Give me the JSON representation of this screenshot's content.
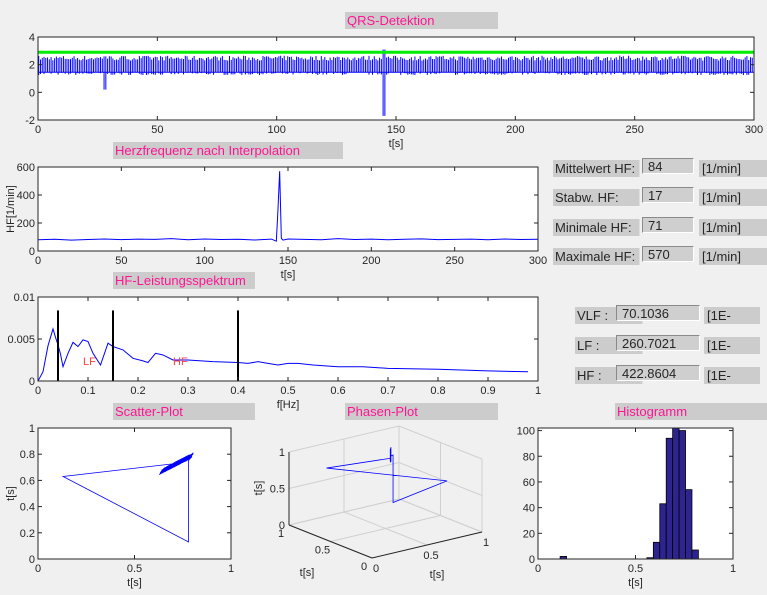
{
  "titles": {
    "qrs": "QRS-Detektion",
    "hr": "Herzfrequenz nach Interpolation",
    "spectrum": "HF-Leistungsspektrum",
    "scatter": "Scatter-Plot",
    "phase": "Phasen-Plot",
    "histogram": "Histogramm"
  },
  "hr_stats": [
    {
      "label": "Mittelwert HF:",
      "value": "84",
      "unit": "[1/min]"
    },
    {
      "label": "Stabw. HF:",
      "value": "17",
      "unit": "[1/min]"
    },
    {
      "label": "Minimale HF:",
      "value": "71",
      "unit": "[1/min]"
    },
    {
      "label": "Maximale HF:",
      "value": "570",
      "unit": "[1/min]"
    }
  ],
  "band_power": [
    {
      "label": "VLF :",
      "value": "70.1036",
      "unit": "[1E-"
    },
    {
      "label": "LF :",
      "value": "260.7021",
      "unit": "[1E-"
    },
    {
      "label": "HF :",
      "value": "422.8604",
      "unit": "[1E-"
    }
  ],
  "colors": {
    "title_text": "#ff1493",
    "signal": "#0000ff",
    "threshold": "#00ee00",
    "band_label": "#ff4040",
    "histogram_bar": "#2e2490"
  },
  "chart_data": [
    {
      "id": "qrs",
      "type": "line",
      "xlabel": "t[s]",
      "ylabel": "",
      "xlim": [
        0,
        300
      ],
      "ylim": [
        -2,
        4
      ],
      "xticks": [
        0,
        50,
        100,
        150,
        200,
        250,
        300
      ],
      "yticks": [
        -2,
        0,
        2,
        4
      ],
      "threshold": 2.9,
      "signal": {
        "baseline": 1.4,
        "peak": 2.5,
        "artifacts": [
          {
            "t": 28,
            "min": 0.2,
            "max": 2.6
          },
          {
            "t": 145,
            "min": -1.7,
            "max": 3.1
          }
        ]
      }
    },
    {
      "id": "hr",
      "type": "line",
      "xlabel": "t[s]",
      "ylabel": "HF[1/min]",
      "xlim": [
        0,
        300
      ],
      "ylim": [
        0,
        600
      ],
      "xticks": [
        0,
        50,
        100,
        150,
        200,
        250,
        300
      ],
      "yticks": [
        0,
        200,
        400,
        600
      ],
      "x": [
        0,
        10,
        20,
        30,
        40,
        50,
        60,
        70,
        80,
        90,
        100,
        110,
        120,
        130,
        140,
        143,
        144,
        145,
        146,
        147,
        150,
        160,
        170,
        180,
        190,
        200,
        210,
        220,
        230,
        240,
        250,
        260,
        270,
        280,
        290,
        300
      ],
      "y": [
        80,
        84,
        78,
        82,
        86,
        81,
        85,
        83,
        88,
        80,
        86,
        82,
        84,
        79,
        85,
        70,
        300,
        570,
        90,
        78,
        86,
        83,
        80,
        88,
        82,
        85,
        80,
        84,
        87,
        81,
        83,
        85,
        80,
        86,
        82,
        84
      ]
    },
    {
      "id": "spectrum",
      "type": "line",
      "xlabel": "f[Hz]",
      "ylabel": "",
      "xlim": [
        0,
        1
      ],
      "ylim": [
        0,
        0.01
      ],
      "xticks": [
        0,
        0.1,
        0.2,
        0.3,
        0.4,
        0.5,
        0.6,
        0.7,
        0.8,
        0.9,
        1
      ],
      "yticks": [
        0,
        0.005,
        0.01
      ],
      "band_limits": [
        0.04,
        0.15,
        0.4
      ],
      "band_limit_height": 0.0084,
      "annotations": [
        {
          "text": "LF",
          "x": 0.09,
          "y": 0.0019
        },
        {
          "text": "HF",
          "x": 0.27,
          "y": 0.0019
        }
      ],
      "x": [
        0,
        0.01,
        0.02,
        0.03,
        0.035,
        0.04,
        0.045,
        0.05,
        0.06,
        0.07,
        0.08,
        0.09,
        0.1,
        0.11,
        0.125,
        0.14,
        0.15,
        0.17,
        0.19,
        0.21,
        0.22,
        0.235,
        0.25,
        0.27,
        0.3,
        0.35,
        0.4,
        0.42,
        0.44,
        0.46,
        0.48,
        0.5,
        0.52,
        0.55,
        0.6,
        0.65,
        0.7,
        0.8,
        0.9,
        0.98
      ],
      "y": [
        0,
        0.0011,
        0.0042,
        0.0062,
        0.0052,
        0.0043,
        0.0032,
        0.0017,
        0.0033,
        0.0046,
        0.0041,
        0.0049,
        0.0047,
        0.0033,
        0.0019,
        0.0045,
        0.0041,
        0.0037,
        0.0027,
        0.0024,
        0.0022,
        0.0033,
        0.0031,
        0.0025,
        0.0025,
        0.0023,
        0.0022,
        0.0021,
        0.0023,
        0.0021,
        0.0019,
        0.0021,
        0.0021,
        0.0019,
        0.0017,
        0.0017,
        0.0015,
        0.0014,
        0.0012,
        0.0011
      ]
    },
    {
      "id": "scatter",
      "type": "line",
      "xlabel": "t[s]",
      "ylabel": "t[s]",
      "xlim": [
        0,
        1
      ],
      "ylim": [
        0,
        1
      ],
      "xticks": [
        0,
        0.5,
        1
      ],
      "yticks": [
        0,
        0.2,
        0.4,
        0.6,
        0.8,
        1
      ],
      "outline": [
        [
          0.72,
          0.73
        ],
        [
          0.13,
          0.63
        ],
        [
          0.78,
          0.13
        ],
        [
          0.78,
          0.75
        ]
      ],
      "cluster": {
        "center": [
          0.72,
          0.73
        ],
        "spread": [
          0.06,
          0.05
        ]
      }
    },
    {
      "id": "phase",
      "type": "line3d",
      "xlabel": "t[s]",
      "ylabel": "t[s]",
      "zlabel": "t[s]",
      "xlim": [
        0,
        1
      ],
      "ylim": [
        0,
        1
      ],
      "zlim": [
        0,
        1
      ],
      "xticks": [
        0,
        0.5,
        1
      ],
      "yticks": [
        0,
        0.5,
        1
      ],
      "zticks": [
        0,
        0.5,
        1
      ],
      "points": [
        [
          0.72,
          0.73,
          0.78
        ],
        [
          0.13,
          0.72,
          0.86
        ],
        [
          0.78,
          0.13,
          0.72
        ],
        [
          0.78,
          0.78,
          0.13
        ],
        [
          0.78,
          0.78,
          0.78
        ]
      ],
      "cluster": {
        "center": [
          0.72,
          0.73,
          0.74
        ],
        "spread": 0.05
      }
    },
    {
      "id": "histogram",
      "type": "bar",
      "xlabel": "t[s]",
      "ylabel": "",
      "xlim": [
        0,
        1
      ],
      "ylim": [
        0,
        102
      ],
      "xticks": [
        0,
        0.5,
        1
      ],
      "yticks": [
        0,
        20,
        40,
        60,
        80,
        100
      ],
      "bin_centers": [
        0.13,
        0.575,
        0.608,
        0.641,
        0.674,
        0.707,
        0.74,
        0.773,
        0.806
      ],
      "bin_width": 0.033,
      "values": [
        2,
        1,
        13,
        43,
        94,
        102,
        100,
        54,
        7
      ]
    }
  ]
}
